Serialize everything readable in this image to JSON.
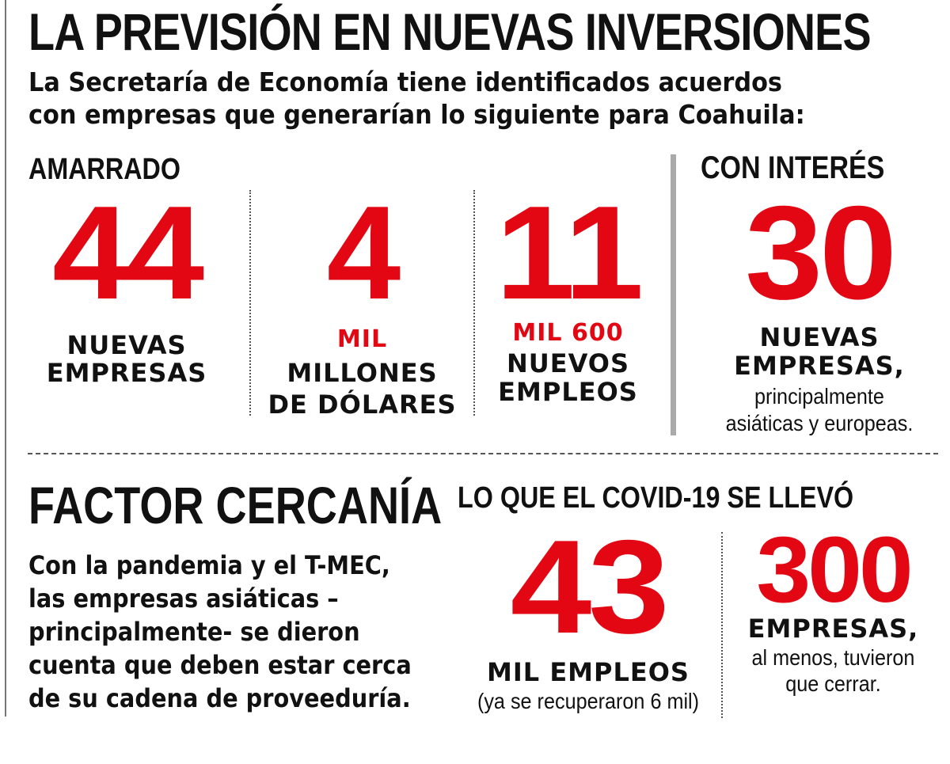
{
  "header": {
    "title": "LA PREVISIÓN EN NUEVAS INVERSIONES",
    "subtitle_line1": "La Secretaría de Economía tiene identificados acuerdos",
    "subtitle_line2": "con empresas que generarían lo siguiente para Coahuila:"
  },
  "amarrado": {
    "label": "AMARRADO",
    "stats": [
      {
        "number": "44",
        "unit": "",
        "lines": [
          "NUEVAS",
          "EMPRESAS"
        ]
      },
      {
        "number": "4",
        "unit": "MIL",
        "lines": [
          "MILLONES",
          "DE DÓLARES"
        ]
      },
      {
        "number": "11",
        "unit": "MIL 600",
        "lines": [
          "NUEVOS",
          "EMPLEOS"
        ]
      }
    ]
  },
  "con_interes": {
    "label": "CON INTERÉS",
    "number": "30",
    "lines": [
      "NUEVAS",
      "EMPRESAS,"
    ],
    "note_line1": "principalmente",
    "note_line2": "asiáticas y europeas."
  },
  "factor": {
    "title": "FACTOR CERCANÍA",
    "body_lines": [
      "Con la pandemia y el T-MEC,",
      "las empresas asiáticas –",
      "principalmente- se dieron",
      "cuenta que deben estar cerca",
      "de su cadena de proveeduría."
    ]
  },
  "covid": {
    "title": "LO QUE EL COVID-19 SE LLEVÓ",
    "left": {
      "number": "43",
      "label": "MIL EMPLEOS",
      "note": "(ya se recuperaron 6 mil)"
    },
    "right": {
      "number": "300",
      "label": "EMPRESAS,",
      "note_line1": "al menos, tuvieron",
      "note_line2": "que cerrar."
    }
  },
  "colors": {
    "accent": "#e30613",
    "text": "#111111",
    "rule": "#555555",
    "bar": "#aaaaaa"
  }
}
